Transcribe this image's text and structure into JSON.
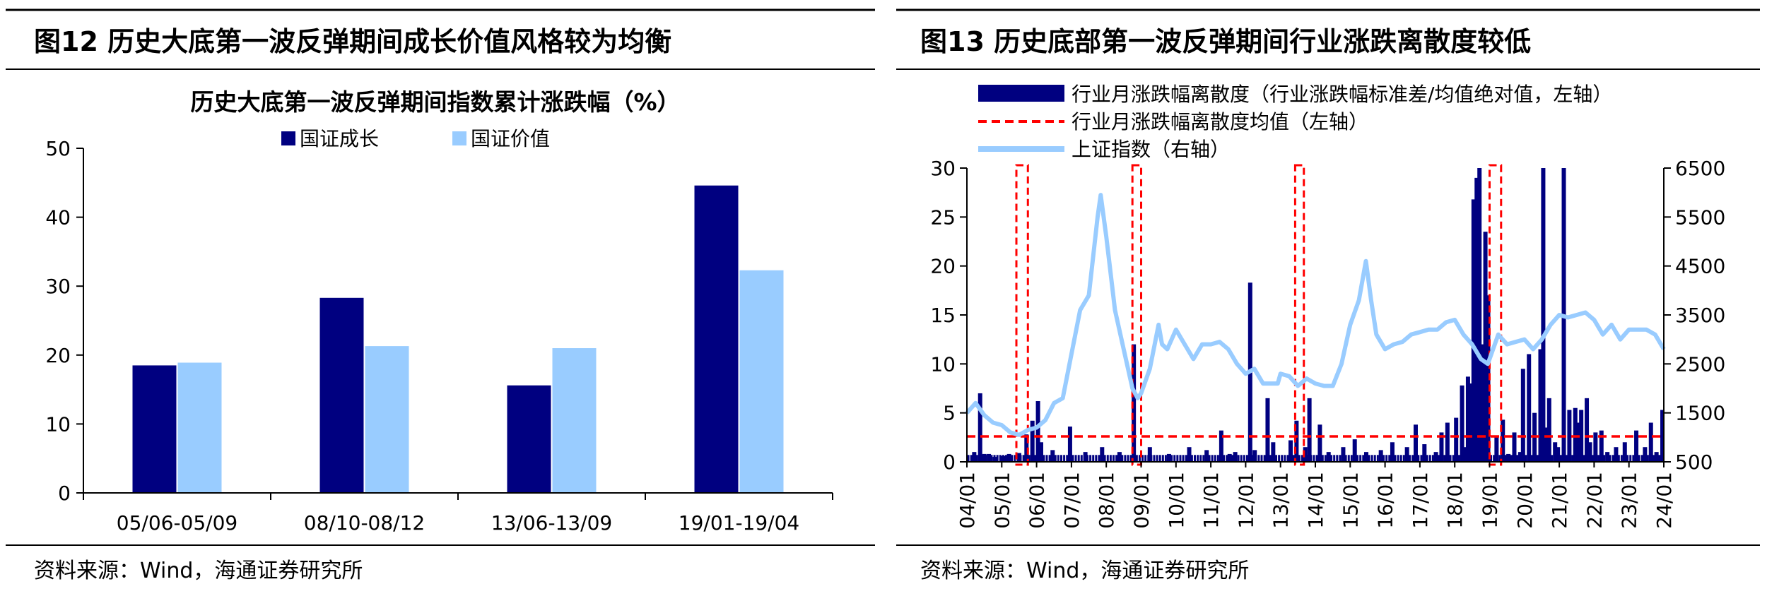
{
  "figures": [
    {
      "title": "图12 历史大底第一波反弹期间成长价值风格较为均衡",
      "source": "资料来源：Wind，海通证券研究所"
    },
    {
      "title": "图13 历史底部第一波反弹期间行业涨跌离散度较低",
      "source": "资料来源：Wind，海通证券研究所"
    }
  ],
  "colors": {
    "dark_navy": "#000080",
    "light_blue": "#99CCFF",
    "red": "#FF0000"
  },
  "chart_data": [
    {
      "type": "bar",
      "title": "历史大底第一波反弹期间指数累计涨跌幅（%）",
      "categories": [
        "05/06-05/09",
        "08/10-08/12",
        "13/06-13/09",
        "19/01-19/04"
      ],
      "series": [
        {
          "name": "国证成长",
          "values": [
            18.5,
            28.3,
            15.6,
            44.6
          ]
        },
        {
          "name": "国证价值",
          "values": [
            18.9,
            21.3,
            21.0,
            32.3
          ]
        }
      ],
      "ylim": [
        0,
        50
      ],
      "yticks": [
        0,
        10,
        20,
        30,
        40,
        50
      ],
      "grid": false,
      "legend": "top-center"
    },
    {
      "type": "bar+line",
      "x_ticks": [
        "04/01",
        "05/01",
        "06/01",
        "07/01",
        "08/01",
        "09/01",
        "10/01",
        "11/01",
        "12/01",
        "13/01",
        "14/01",
        "15/01",
        "16/01",
        "17/01",
        "18/01",
        "19/01",
        "20/01",
        "21/01",
        "22/01",
        "23/01",
        "24/01"
      ],
      "x_range": [
        2004.0,
        2024.0
      ],
      "y_left": {
        "lim": [
          0,
          30
        ],
        "ticks": [
          0,
          5,
          10,
          15,
          20,
          25,
          30
        ]
      },
      "y_right": {
        "lim": [
          500,
          6500
        ],
        "ticks": [
          500,
          1500,
          2500,
          3500,
          4500,
          5500,
          6500
        ]
      },
      "legend": "top",
      "series": [
        {
          "name": "行业月涨跌幅离散度（行业涨跌幅标准差/均值绝对值，左轴）",
          "type": "bar",
          "axis": "left",
          "x": [
            2004.21,
            2004.38,
            2004.5,
            2004.63,
            2004.8,
            2005.04,
            2005.21,
            2005.5,
            2005.71,
            2005.88,
            2006.04,
            2006.13,
            2006.46,
            2006.96,
            2007.4,
            2007.88,
            2008.38,
            2008.79,
            2009.25,
            2009.8,
            2010.38,
            2010.88,
            2011.3,
            2011.54,
            2011.7,
            2012.13,
            2012.26,
            2012.63,
            2012.79,
            2013.29,
            2013.46,
            2013.71,
            2013.83,
            2014.13,
            2014.38,
            2014.8,
            2015.13,
            2015.46,
            2015.88,
            2016.21,
            2016.63,
            2016.88,
            2017.13,
            2017.46,
            2017.62,
            2017.79,
            2018.04,
            2018.21,
            2018.3,
            2018.38,
            2018.46,
            2018.54,
            2018.63,
            2018.71,
            2018.79,
            2018.88,
            2018.96,
            2019.2,
            2019.38,
            2019.54,
            2019.71,
            2019.88,
            2019.96,
            2020.13,
            2020.29,
            2020.46,
            2020.54,
            2020.63,
            2020.71,
            2020.88,
            2020.96,
            2021.13,
            2021.29,
            2021.46,
            2021.54,
            2021.63,
            2021.79,
            2021.88,
            2022.04,
            2022.21,
            2022.38,
            2022.63,
            2022.88,
            2023.21,
            2023.46,
            2023.63,
            2023.79,
            2023.96
          ],
          "values": [
            1.0,
            7.0,
            0.8,
            0.8,
            0.5,
            0.6,
            0.8,
            0.9,
            2.8,
            4.2,
            6.2,
            2.0,
            1.2,
            3.6,
            1.0,
            1.5,
            1.0,
            12.0,
            1.5,
            0.8,
            1.5,
            1.2,
            3.2,
            0.8,
            1.0,
            18.3,
            1.2,
            6.5,
            2.0,
            2.2,
            4.2,
            1.5,
            6.5,
            3.8,
            1.0,
            1.5,
            2.3,
            1.0,
            1.2,
            2.0,
            1.5,
            3.8,
            1.8,
            1.0,
            3.0,
            4.0,
            4.5,
            7.8,
            1.5,
            8.7,
            8.0,
            26.8,
            29.0,
            31.0,
            12.0,
            23.5,
            17.0,
            2.5,
            4.3,
            0.8,
            3.0,
            1.0,
            9.5,
            11.0,
            5.0,
            11.5,
            31.0,
            3.5,
            6.5,
            2.0,
            1.5,
            31.0,
            5.3,
            5.5,
            4.0,
            5.3,
            6.5,
            2.0,
            3.0,
            3.2,
            1.0,
            1.5,
            2.0,
            3.2,
            1.5,
            4.0,
            1.0,
            5.3
          ]
        },
        {
          "name": "行业月涨跌幅离散度均值（左轴）",
          "type": "line",
          "axis": "left",
          "value": 2.6
        },
        {
          "name": "上证指数（右轴）",
          "type": "line",
          "axis": "right",
          "x": [
            2004.0,
            2004.25,
            2004.5,
            2004.75,
            2005.0,
            2005.25,
            2005.5,
            2005.75,
            2006.0,
            2006.25,
            2006.5,
            2006.75,
            2007.0,
            2007.25,
            2007.5,
            2007.75,
            2007.84,
            2008.0,
            2008.25,
            2008.5,
            2008.75,
            2008.9,
            2009.0,
            2009.25,
            2009.5,
            2009.6,
            2009.75,
            2010.0,
            2010.25,
            2010.5,
            2010.75,
            2011.0,
            2011.25,
            2011.5,
            2011.75,
            2012.0,
            2012.25,
            2012.5,
            2012.75,
            2012.92,
            2013.0,
            2013.25,
            2013.5,
            2013.75,
            2014.0,
            2014.25,
            2014.5,
            2014.75,
            2015.0,
            2015.25,
            2015.45,
            2015.6,
            2015.75,
            2016.0,
            2016.25,
            2016.5,
            2016.75,
            2017.0,
            2017.25,
            2017.5,
            2017.75,
            2018.0,
            2018.25,
            2018.5,
            2018.75,
            2018.95,
            2019.0,
            2019.25,
            2019.5,
            2019.75,
            2020.0,
            2020.25,
            2020.5,
            2020.75,
            2021.0,
            2021.25,
            2021.5,
            2021.75,
            2022.0,
            2022.25,
            2022.5,
            2022.75,
            2023.0,
            2023.25,
            2023.5,
            2023.75,
            2024.0
          ],
          "values": [
            1500,
            1700,
            1450,
            1300,
            1250,
            1100,
            1050,
            1150,
            1200,
            1350,
            1700,
            1800,
            2700,
            3600,
            3900,
            5500,
            5950,
            5100,
            3600,
            2800,
            2000,
            1800,
            1900,
            2400,
            3300,
            2900,
            2800,
            3200,
            2900,
            2600,
            2900,
            2900,
            2950,
            2800,
            2500,
            2300,
            2400,
            2100,
            2100,
            2100,
            2300,
            2250,
            2050,
            2200,
            2100,
            2050,
            2050,
            2500,
            3300,
            3800,
            4600,
            3800,
            3100,
            2800,
            2900,
            2950,
            3100,
            3150,
            3200,
            3200,
            3350,
            3400,
            3100,
            2900,
            2600,
            2500,
            2600,
            3100,
            2900,
            2950,
            3000,
            2800,
            3000,
            3300,
            3500,
            3450,
            3500,
            3550,
            3400,
            3100,
            3300,
            3000,
            3200,
            3200,
            3200,
            3100,
            2800
          ]
        }
      ],
      "highlight_windows": [
        {
          "x0": 2005.42,
          "x1": 2005.75
        },
        {
          "x0": 2008.75,
          "x1": 2009.0
        },
        {
          "x0": 2013.42,
          "x1": 2013.67
        },
        {
          "x0": 2019.0,
          "x1": 2019.33
        }
      ]
    }
  ]
}
